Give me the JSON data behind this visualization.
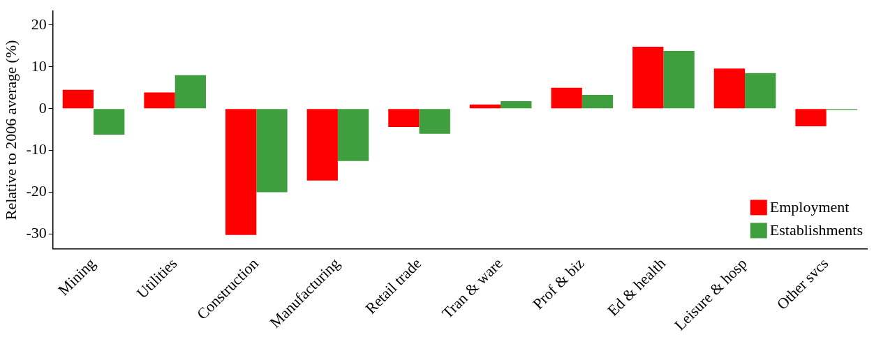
{
  "chart_data": {
    "type": "bar",
    "ylabel": "Relative to 2006 average (%)",
    "categories": [
      "Mining",
      "Utilities",
      "Construction",
      "Manufacturing",
      "Retail trade",
      "Tran & ware",
      "Prof & biz",
      "Ed & health",
      "Leisure & hosp",
      "Other svcs"
    ],
    "series": [
      {
        "name": "Employment",
        "color": "#ff0000",
        "values": [
          4.5,
          3.9,
          -30.2,
          -17.2,
          -4.4,
          1.0,
          5.0,
          14.8,
          9.6,
          -4.2
        ]
      },
      {
        "name": "Establishments",
        "color": "#3f9f3f",
        "values": [
          -6.2,
          8.0,
          -20.0,
          -12.5,
          -6.0,
          1.8,
          3.3,
          13.8,
          8.5,
          -0.3
        ]
      }
    ],
    "ylim": [
      -33.5,
      23.3
    ],
    "yticks": [
      -30,
      -20,
      -10,
      0,
      10,
      20
    ],
    "grid": false,
    "legend": "bottom right"
  }
}
